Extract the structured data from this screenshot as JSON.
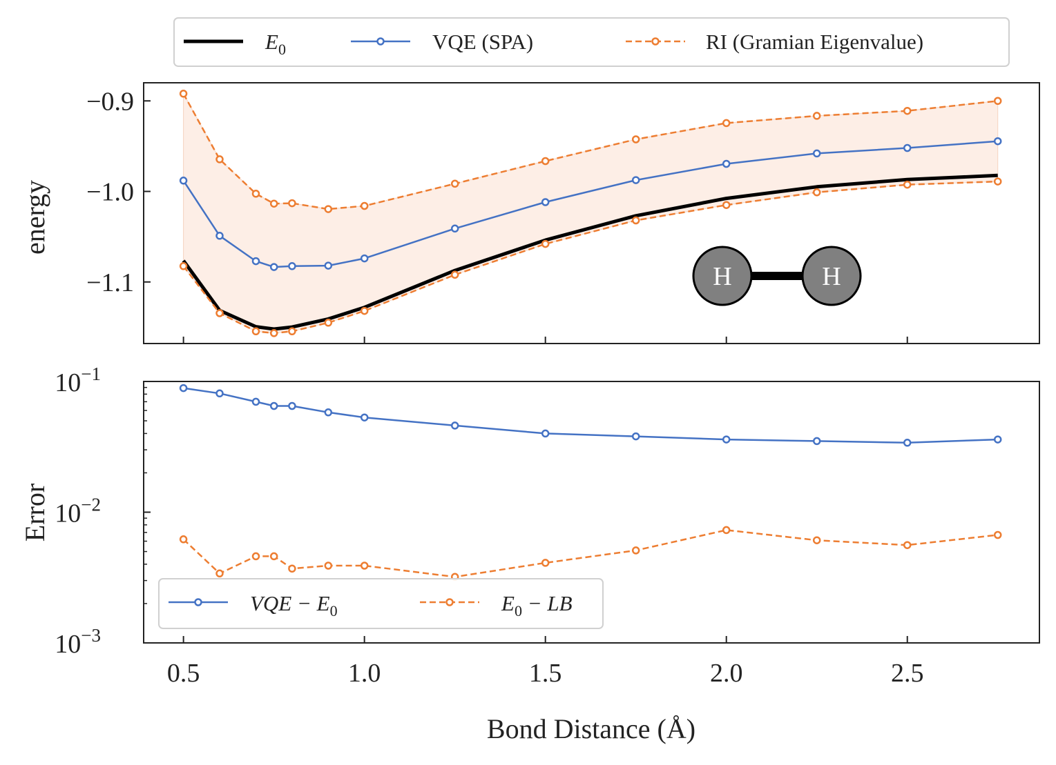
{
  "chart_data": [
    {
      "type": "line",
      "ylabel": "energy",
      "xlim": [
        0.39,
        2.865
      ],
      "ylim": [
        -1.168,
        -0.88
      ],
      "yticks": [
        -0.9,
        -1.0,
        -1.1
      ],
      "ytick_labels": [
        "−0.9",
        "−1.0",
        "−1.1"
      ],
      "xticks": [
        0.5,
        1.0,
        1.5,
        2.0,
        2.5
      ],
      "legend_position": "top (outside, above plot)",
      "x": [
        0.5,
        0.6,
        0.7,
        0.75,
        0.8,
        0.9,
        1.0,
        1.25,
        1.5,
        1.75,
        2.0,
        2.25,
        2.5,
        2.75
      ],
      "series": [
        {
          "name": "E",
          "name_subscript": "0",
          "color": "#000000",
          "style": "solid-thick",
          "values": [
            -1.0764,
            -1.1314,
            -1.1494,
            -1.152,
            -1.1498,
            -1.1409,
            -1.1281,
            -1.0873,
            -1.0538,
            -1.0269,
            -1.0077,
            -0.9949,
            -0.9869,
            -0.9823
          ]
        },
        {
          "name": "VQE (SPA)",
          "color": "#4472c4",
          "style": "solid-markers",
          "values": [
            -0.988,
            -1.049,
            -1.077,
            -1.0835,
            -1.0825,
            -1.082,
            -1.074,
            -1.041,
            -1.0118,
            -0.9875,
            -0.9695,
            -0.958,
            -0.952,
            -0.9445
          ]
        },
        {
          "name": "RI (Gramian Eigenvalue)",
          "color": "#ed7d31",
          "style": "dashed-markers",
          "upper": [
            -0.892,
            -0.9645,
            -1.0025,
            -1.0135,
            -1.013,
            -1.0195,
            -1.016,
            -0.9915,
            -0.9665,
            -0.9425,
            -0.9245,
            -0.9165,
            -0.911,
            -0.9
          ],
          "lower": [
            -1.0825,
            -1.1345,
            -1.1545,
            -1.1565,
            -1.1545,
            -1.145,
            -1.132,
            -1.092,
            -1.058,
            -1.032,
            -1.015,
            -1.001,
            -0.9925,
            -0.989
          ]
        }
      ],
      "fill_color": "#fdeee6",
      "molecule": {
        "atoms": [
          "H",
          "H"
        ],
        "atom_color": "#808080"
      }
    },
    {
      "type": "line",
      "ylabel": "Error",
      "xlabel": "Bond Distance (Å)",
      "xlim": [
        0.39,
        2.865
      ],
      "yscale": "log",
      "ylim": [
        0.001,
        0.1
      ],
      "yticks": [
        0.001,
        0.01,
        0.1
      ],
      "ytick_base": [
        "10",
        "10",
        "10"
      ],
      "ytick_exponent": [
        "−3",
        "−2",
        "−1"
      ],
      "xticks": [
        0.5,
        1.0,
        1.5,
        2.0,
        2.5
      ],
      "xtick_labels": [
        "0.5",
        "1.0",
        "1.5",
        "2.0",
        "2.5"
      ],
      "legend_position": "lower-left",
      "x": [
        0.5,
        0.6,
        0.7,
        0.75,
        0.8,
        0.9,
        1.0,
        1.25,
        1.5,
        1.75,
        2.0,
        2.25,
        2.5,
        2.75
      ],
      "series": [
        {
          "name": "VQE − E",
          "name_subscript": "0",
          "color": "#4472c4",
          "style": "solid-markers",
          "values": [
            0.089,
            0.081,
            0.07,
            0.065,
            0.065,
            0.058,
            0.053,
            0.046,
            0.04,
            0.038,
            0.036,
            0.035,
            0.034,
            0.036
          ]
        },
        {
          "name": "E",
          "name_subscript": "0",
          "name_suffix": " − LB",
          "color": "#ed7d31",
          "style": "dashed-markers",
          "values": [
            0.0062,
            0.0034,
            0.0046,
            0.0046,
            0.0037,
            0.0039,
            0.0039,
            0.0032,
            0.0041,
            0.0051,
            0.0073,
            0.0061,
            0.0056,
            0.0067
          ]
        }
      ]
    }
  ]
}
